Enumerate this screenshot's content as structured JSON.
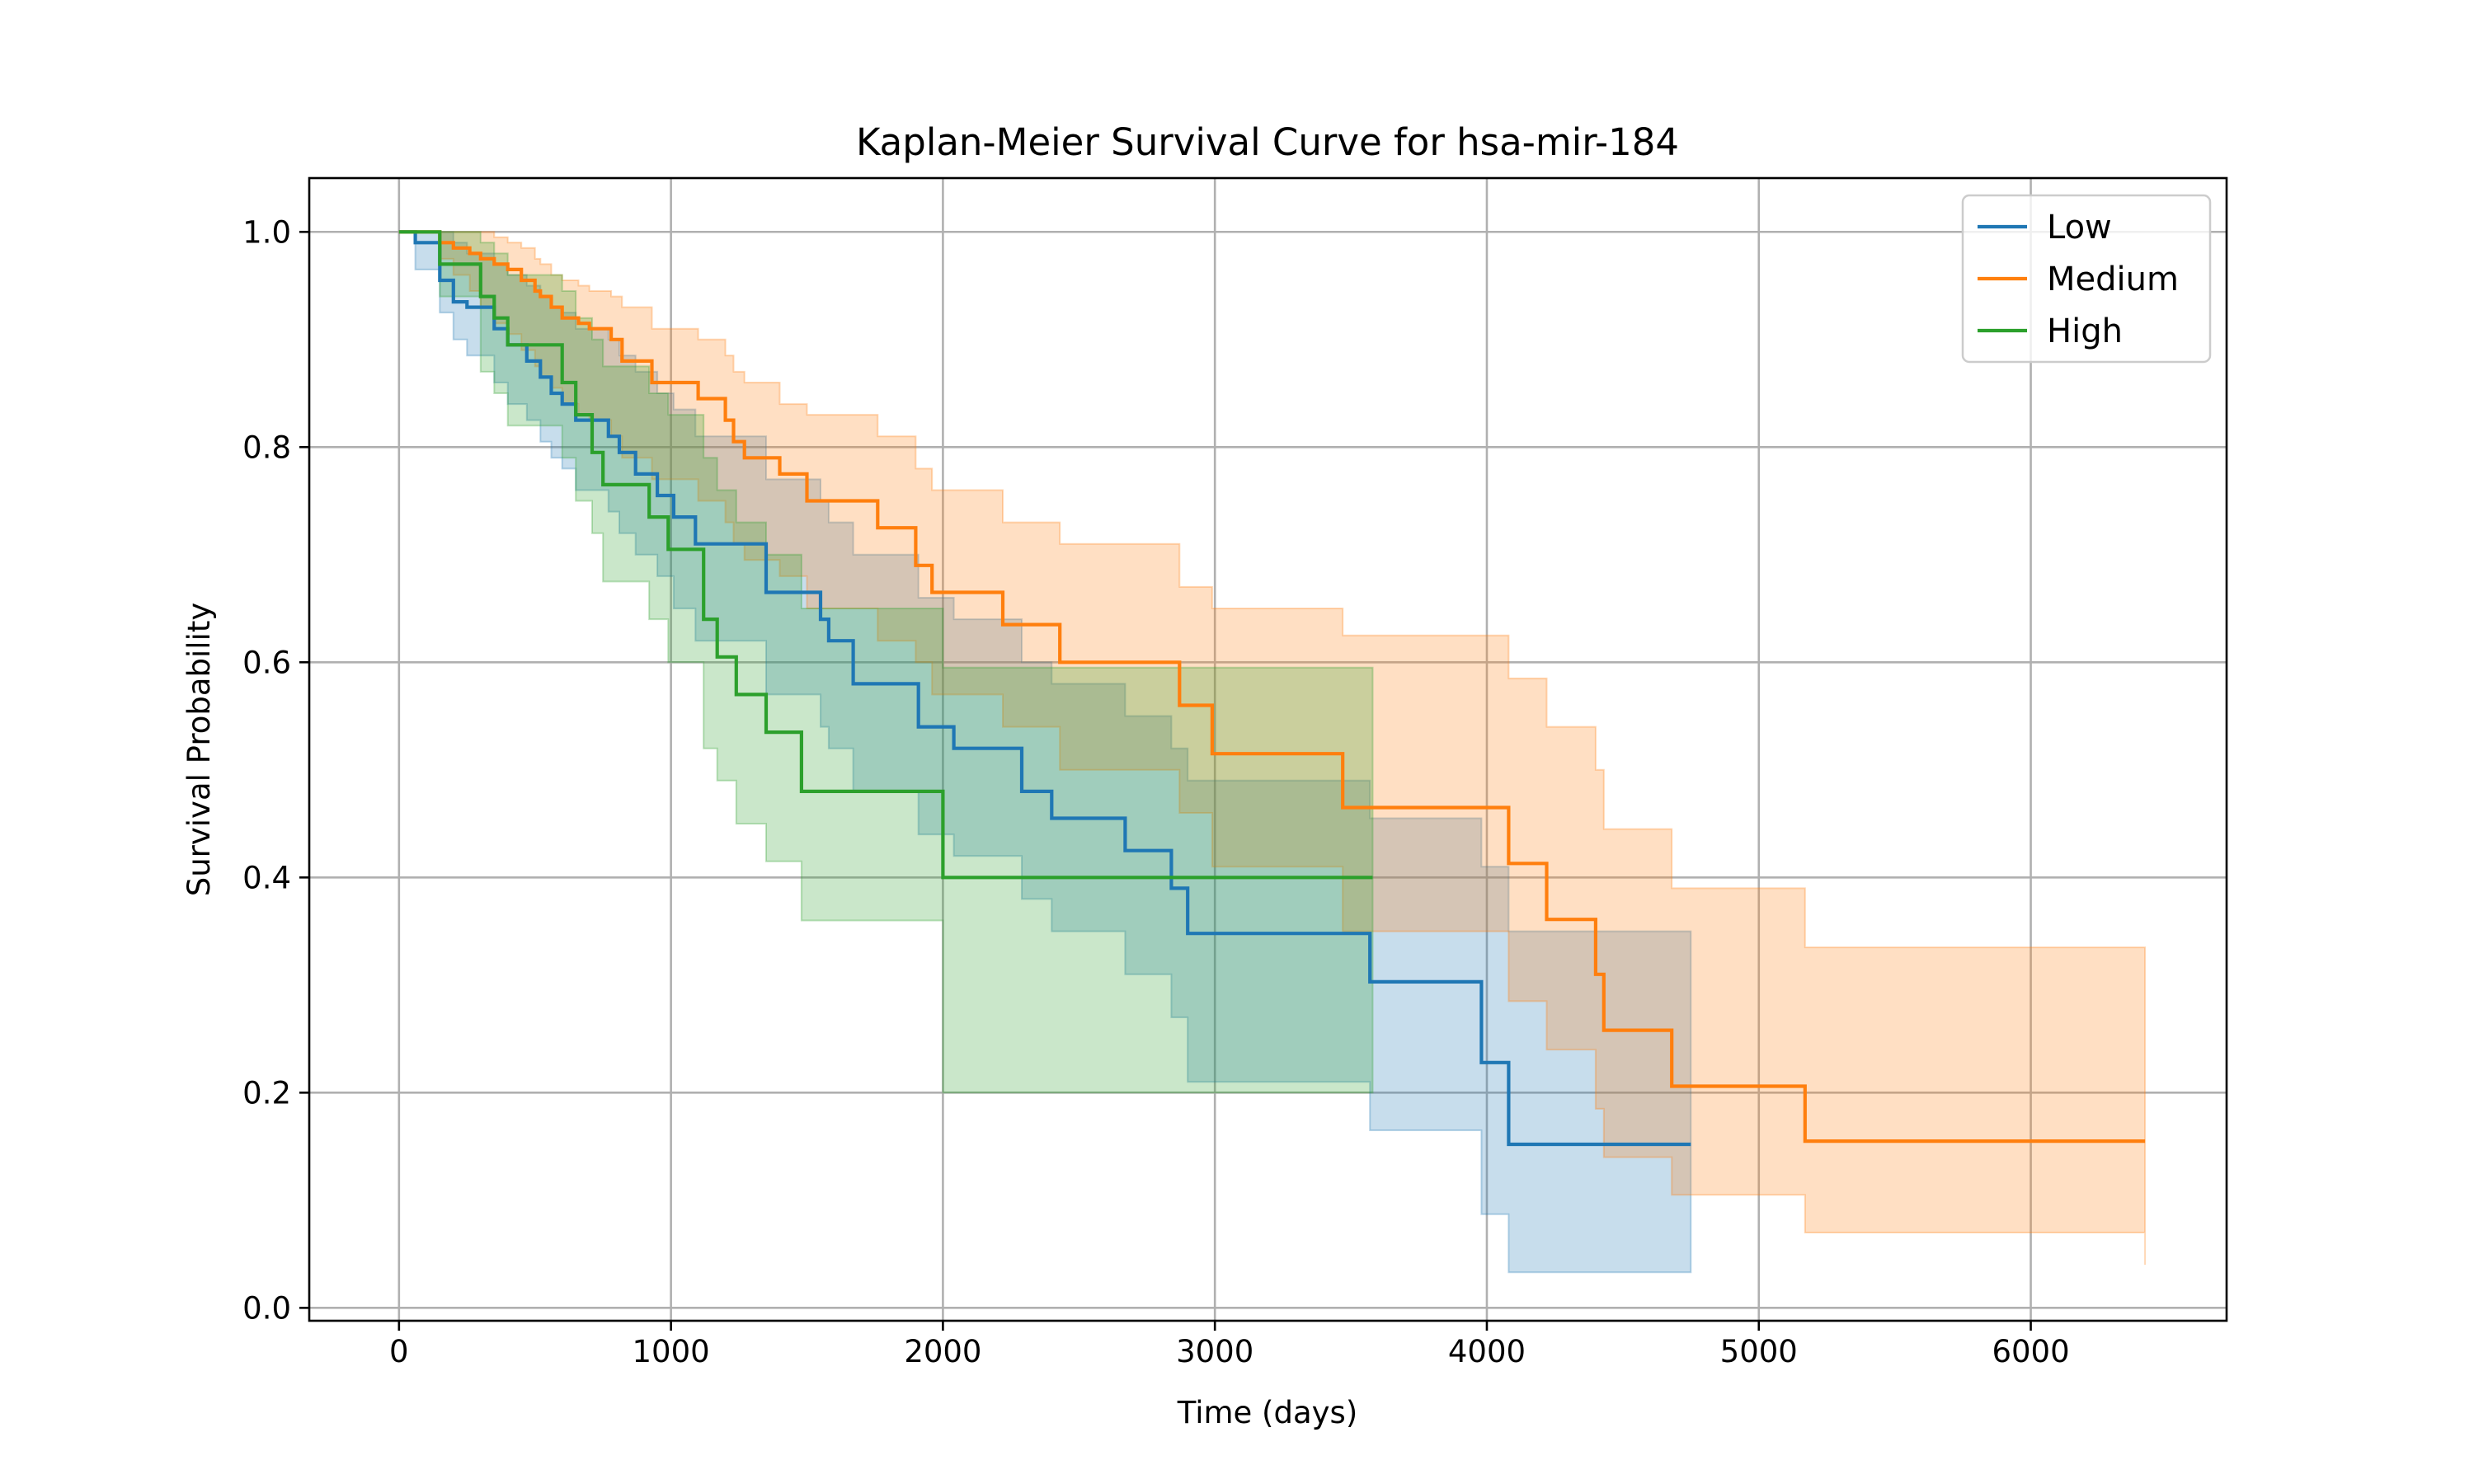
{
  "chart_data": {
    "type": "line",
    "title": "Kaplan-Meier Survival Curve for hsa-mir-184",
    "xlabel": "Time (days)",
    "ylabel": "Survival Probability",
    "xlim": [
      -330,
      6720
    ],
    "ylim": [
      -0.012,
      1.05
    ],
    "xticks": [
      0,
      1000,
      2000,
      3000,
      4000,
      5000,
      6000
    ],
    "yticks": [
      0.0,
      0.2,
      0.4,
      0.6,
      0.8,
      1.0
    ],
    "xtick_labels": [
      "0",
      "1000",
      "2000",
      "3000",
      "4000",
      "5000",
      "6000"
    ],
    "ytick_labels": [
      "0.0",
      "0.2",
      "0.4",
      "0.6",
      "0.8",
      "1.0"
    ],
    "grid": true,
    "legend_position": "upper right",
    "series": [
      {
        "name": "Low",
        "color": "#1f77b4",
        "x": [
          0,
          60,
          150,
          200,
          250,
          350,
          400,
          470,
          520,
          560,
          600,
          650,
          770,
          810,
          870,
          950,
          1010,
          1090,
          1350,
          1550,
          1580,
          1670,
          1910,
          2040,
          2290,
          2400,
          2670,
          2840,
          2900,
          3570,
          3980,
          4080,
          4750
        ],
        "y": [
          1.0,
          0.99,
          0.955,
          0.935,
          0.93,
          0.91,
          0.895,
          0.88,
          0.865,
          0.85,
          0.84,
          0.825,
          0.81,
          0.795,
          0.775,
          0.755,
          0.735,
          0.71,
          0.665,
          0.64,
          0.62,
          0.58,
          0.54,
          0.52,
          0.48,
          0.455,
          0.425,
          0.39,
          0.348,
          0.303,
          0.228,
          0.152,
          0.152
        ],
        "ci_upper": [
          1.0,
          1.0,
          1.0,
          0.99,
          0.98,
          0.97,
          0.96,
          0.95,
          0.94,
          0.93,
          0.925,
          0.91,
          0.9,
          0.885,
          0.87,
          0.85,
          0.835,
          0.81,
          0.77,
          0.75,
          0.73,
          0.7,
          0.66,
          0.64,
          0.6,
          0.58,
          0.55,
          0.52,
          0.49,
          0.455,
          0.41,
          0.35,
          0.35
        ],
        "ci_lower": [
          1.0,
          0.965,
          0.925,
          0.9,
          0.885,
          0.86,
          0.84,
          0.825,
          0.805,
          0.79,
          0.78,
          0.76,
          0.74,
          0.72,
          0.7,
          0.68,
          0.65,
          0.62,
          0.57,
          0.54,
          0.52,
          0.48,
          0.44,
          0.42,
          0.38,
          0.35,
          0.31,
          0.27,
          0.21,
          0.165,
          0.087,
          0.033,
          0.033
        ]
      },
      {
        "name": "Medium",
        "color": "#ff7f0e",
        "x": [
          0,
          150,
          200,
          260,
          300,
          350,
          400,
          450,
          500,
          520,
          560,
          600,
          660,
          700,
          780,
          820,
          930,
          1100,
          1200,
          1230,
          1270,
          1400,
          1500,
          1760,
          1900,
          1960,
          2220,
          2430,
          2870,
          2990,
          3470,
          4080,
          4220,
          4400,
          4430,
          4680,
          5170,
          6420
        ],
        "y": [
          1.0,
          0.99,
          0.985,
          0.98,
          0.975,
          0.97,
          0.965,
          0.955,
          0.945,
          0.94,
          0.93,
          0.92,
          0.915,
          0.91,
          0.9,
          0.88,
          0.86,
          0.845,
          0.825,
          0.805,
          0.79,
          0.775,
          0.75,
          0.725,
          0.69,
          0.665,
          0.635,
          0.6,
          0.56,
          0.515,
          0.465,
          0.413,
          0.361,
          0.31,
          0.258,
          0.206,
          0.155,
          0.155
        ],
        "ci_upper": [
          1.0,
          1.0,
          1.0,
          1.0,
          1.0,
          0.995,
          0.99,
          0.985,
          0.975,
          0.97,
          0.96,
          0.955,
          0.95,
          0.945,
          0.94,
          0.93,
          0.91,
          0.9,
          0.885,
          0.87,
          0.86,
          0.84,
          0.83,
          0.81,
          0.78,
          0.76,
          0.73,
          0.71,
          0.67,
          0.65,
          0.625,
          0.585,
          0.54,
          0.5,
          0.445,
          0.39,
          0.335,
          0.335
        ],
        "ci_lower": [
          1.0,
          0.975,
          0.96,
          0.945,
          0.93,
          0.915,
          0.905,
          0.89,
          0.875,
          0.865,
          0.855,
          0.84,
          0.83,
          0.825,
          0.81,
          0.79,
          0.77,
          0.75,
          0.73,
          0.71,
          0.695,
          0.68,
          0.65,
          0.62,
          0.6,
          0.57,
          0.54,
          0.5,
          0.46,
          0.41,
          0.35,
          0.285,
          0.24,
          0.185,
          0.14,
          0.105,
          0.07,
          0.04
        ]
      },
      {
        "name": "High",
        "color": "#2ca02c",
        "x": [
          0,
          150,
          300,
          350,
          400,
          600,
          650,
          710,
          750,
          920,
          990,
          1120,
          1170,
          1240,
          1350,
          1480,
          2000,
          3580
        ],
        "y": [
          1.0,
          0.97,
          0.94,
          0.92,
          0.895,
          0.86,
          0.83,
          0.795,
          0.765,
          0.735,
          0.705,
          0.64,
          0.605,
          0.57,
          0.535,
          0.48,
          0.4,
          0.4
        ],
        "ci_upper": [
          1.0,
          1.0,
          0.99,
          0.98,
          0.96,
          0.945,
          0.92,
          0.9,
          0.875,
          0.85,
          0.83,
          0.79,
          0.76,
          0.73,
          0.7,
          0.65,
          0.595,
          0.595
        ],
        "ci_lower": [
          1.0,
          0.94,
          0.87,
          0.85,
          0.82,
          0.79,
          0.75,
          0.72,
          0.675,
          0.64,
          0.6,
          0.52,
          0.49,
          0.45,
          0.415,
          0.36,
          0.2,
          0.2
        ]
      }
    ]
  }
}
